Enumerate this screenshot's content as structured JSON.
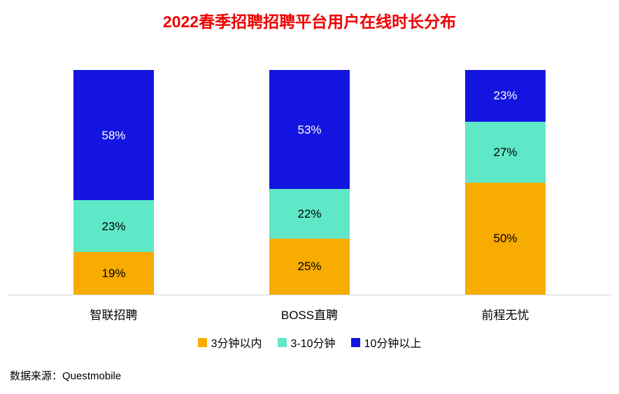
{
  "title": "2022春季招聘招聘平台用户在线时长分布",
  "source": "数据来源：Questmobile",
  "colors": {
    "title": "#EE0000",
    "axis_line": "#D9D9D9"
  },
  "chart_data": {
    "type": "bar",
    "subtype": "stacked-100-percent",
    "title": "2022春季招聘招聘平台用户在线时长分布",
    "categories": [
      "智联招聘",
      "BOSS直聘",
      "前程无忧"
    ],
    "series": [
      {
        "name": "3分钟以内",
        "color": "#F8AB00",
        "values": [
          19,
          25,
          50
        ]
      },
      {
        "name": "3-10分钟",
        "color": "#5FE8C8",
        "values": [
          23,
          22,
          27
        ]
      },
      {
        "name": "10分钟以上",
        "color": "#1414E0",
        "values": [
          58,
          53,
          23
        ]
      }
    ],
    "value_unit": "%",
    "ylim": [
      0,
      100
    ],
    "grid": false,
    "legend_position": "bottom",
    "source": "数据来源：Questmobile"
  }
}
